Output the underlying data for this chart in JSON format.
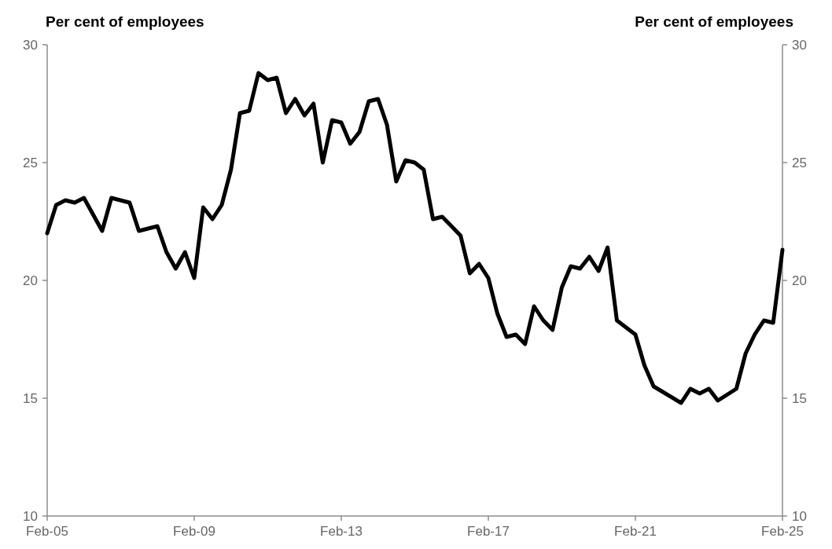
{
  "chart_data": {
    "type": "line",
    "ylabel": "Per cent of employees",
    "y2label": "Per cent of employees",
    "x": [
      "2005-02",
      "2005-05",
      "2005-08",
      "2005-11",
      "2006-02",
      "2006-08",
      "2006-11",
      "2007-05",
      "2007-08",
      "2008-02",
      "2008-05",
      "2008-08",
      "2008-11",
      "2009-02",
      "2009-05",
      "2009-08",
      "2009-11",
      "2010-02",
      "2010-05",
      "2010-08",
      "2010-11",
      "2011-02",
      "2011-05",
      "2011-08",
      "2011-11",
      "2012-02",
      "2012-05",
      "2012-08",
      "2012-11",
      "2013-02",
      "2013-05",
      "2013-08",
      "2013-11",
      "2014-02",
      "2014-05",
      "2014-08",
      "2014-11",
      "2015-02",
      "2015-05",
      "2015-08",
      "2015-11",
      "2016-02",
      "2016-05",
      "2016-08",
      "2016-11",
      "2017-02",
      "2017-05",
      "2017-08",
      "2017-11",
      "2018-02",
      "2018-05",
      "2018-08",
      "2018-11",
      "2019-02",
      "2019-05",
      "2019-08",
      "2019-11",
      "2020-02",
      "2020-05",
      "2020-08",
      "2020-11",
      "2021-02",
      "2021-05",
      "2021-08",
      "2022-05",
      "2022-08",
      "2022-11",
      "2023-02",
      "2023-05",
      "2023-11",
      "2024-02",
      "2024-05",
      "2024-08",
      "2024-11",
      "2025-02"
    ],
    "series": [
      {
        "color": "#000000",
        "values": [
          22.0,
          23.2,
          23.4,
          23.3,
          23.5,
          22.1,
          23.5,
          23.3,
          22.1,
          22.3,
          21.2,
          20.5,
          21.2,
          20.1,
          23.1,
          22.6,
          23.2,
          24.7,
          27.1,
          27.2,
          28.8,
          28.5,
          28.6,
          27.1,
          27.7,
          27.0,
          27.5,
          25.0,
          26.8,
          26.7,
          25.8,
          26.3,
          27.6,
          27.7,
          26.6,
          24.2,
          25.1,
          25.0,
          24.7,
          22.6,
          22.7,
          22.3,
          21.9,
          20.3,
          20.7,
          20.1,
          18.6,
          17.6,
          17.7,
          17.3,
          18.9,
          18.3,
          17.9,
          19.7,
          20.6,
          20.5,
          21.0,
          20.4,
          21.4,
          18.3,
          18.0,
          17.7,
          16.4,
          15.5,
          14.8,
          15.4,
          15.2,
          15.4,
          14.9,
          15.4,
          16.9,
          17.7,
          18.3,
          18.2,
          21.3
        ]
      }
    ],
    "xlim": [
      "2005-02",
      "2025-02"
    ],
    "xticks": [
      {
        "value": "2005-02",
        "label": "Feb-05"
      },
      {
        "value": "2009-02",
        "label": "Feb-09"
      },
      {
        "value": "2013-02",
        "label": "Feb-13"
      },
      {
        "value": "2017-02",
        "label": "Feb-17"
      },
      {
        "value": "2021-02",
        "label": "Feb-21"
      },
      {
        "value": "2025-02",
        "label": "Feb-25"
      }
    ],
    "ylim": [
      10,
      30
    ],
    "yticks": [
      10,
      15,
      20,
      25,
      30
    ],
    "y2lim": [
      10,
      30
    ],
    "y2ticks": [
      10,
      15,
      20,
      25,
      30
    ],
    "grid": false,
    "marker": "none",
    "line_style": "solid"
  }
}
